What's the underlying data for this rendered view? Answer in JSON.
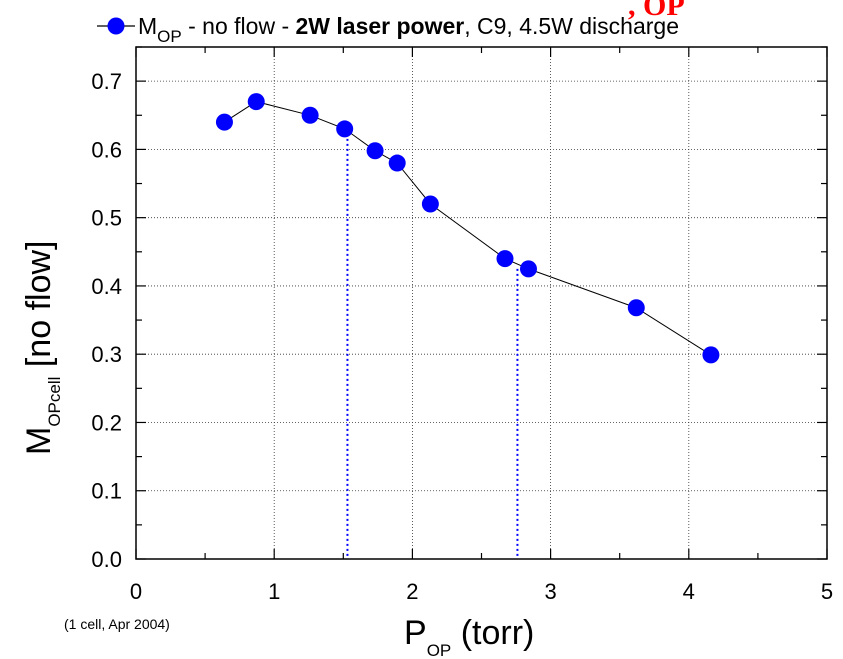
{
  "chart_data": {
    "type": "scatter",
    "legend_position": "top",
    "grid": true,
    "xlim": [
      0,
      5
    ],
    "ylim": [
      0,
      0.75
    ],
    "x_ticks": [
      "0",
      "1",
      "2",
      "3",
      "4",
      "5"
    ],
    "y_ticks": [
      "0.0",
      "0.1",
      "0.2",
      "0.3",
      "0.4",
      "0.5",
      "0.6",
      "0.7"
    ],
    "x_tick_values": [
      0,
      1,
      2,
      3,
      4,
      5
    ],
    "y_tick_values": [
      0,
      0.1,
      0.2,
      0.3,
      0.4,
      0.5,
      0.6,
      0.7
    ],
    "xlabel": {
      "main": "P",
      "sub": "OP",
      "rest": " (torr)"
    },
    "ylabel": {
      "main": "M",
      "sub": "OPcell",
      "rest": " [no flow]"
    },
    "series": [
      {
        "legend": {
          "main": "M",
          "sub": "OP",
          "part1": " - no flow - ",
          "bold": "2W laser power",
          "part2": ", C9, 4.5W discharge"
        },
        "color": "#0000ff",
        "line_color": "#000000",
        "x": [
          0.64,
          0.87,
          1.26,
          1.51,
          1.73,
          1.89,
          2.13,
          2.67,
          2.84,
          3.62,
          4.16
        ],
        "y": [
          0.64,
          0.67,
          0.65,
          0.63,
          0.598,
          0.58,
          0.52,
          0.44,
          0.425,
          0.368,
          0.299
        ]
      }
    ],
    "reference_lines": [
      {
        "x": 1.53,
        "y_top": 0.63,
        "color": "#0000ff",
        "style": "dotted"
      },
      {
        "x": 2.76,
        "y_top": 0.425,
        "color": "#0000ff",
        "style": "dotted"
      }
    ],
    "annotations": [
      "(1 cell, Apr 2004)"
    ],
    "cropped_fragment": ", OP"
  }
}
